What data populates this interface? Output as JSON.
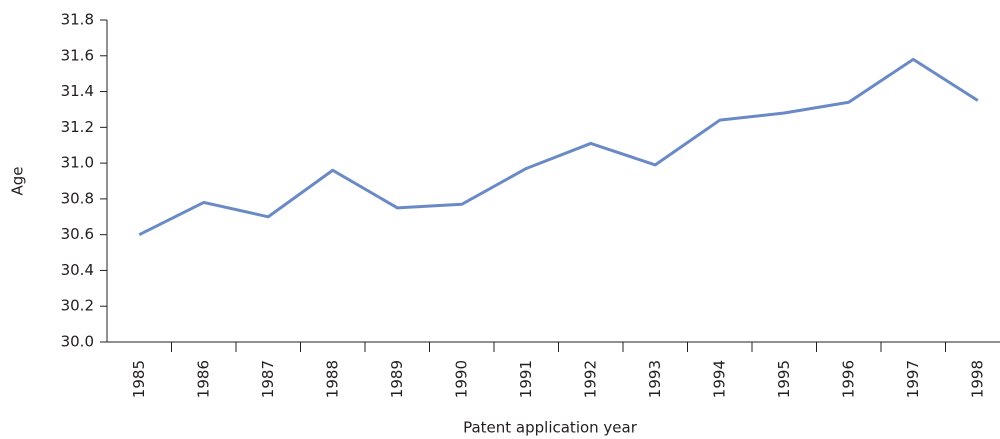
{
  "chart_data": {
    "type": "line",
    "x_label": "Patent application year",
    "y_label": "Age",
    "categories": [
      "1985",
      "1986",
      "1987",
      "1988",
      "1989",
      "1990",
      "1991",
      "1992",
      "1993",
      "1994",
      "1995",
      "1996",
      "1997",
      "1998"
    ],
    "series": [
      {
        "name": "Age",
        "color": "#6a8ac6",
        "values": [
          30.6,
          30.78,
          30.7,
          30.96,
          30.75,
          30.77,
          30.97,
          31.11,
          30.99,
          31.24,
          31.28,
          31.34,
          31.58,
          31.35
        ]
      }
    ],
    "ylim": [
      30.0,
      31.8
    ],
    "yticks": [
      {
        "value": 30.0,
        "label": "30.0"
      },
      30.2,
      30.4,
      30.6,
      30.8,
      {
        "value": 31.0,
        "label": "31.0"
      },
      31.2,
      31.4,
      31.6,
      31.8
    ],
    "grid": false
  }
}
